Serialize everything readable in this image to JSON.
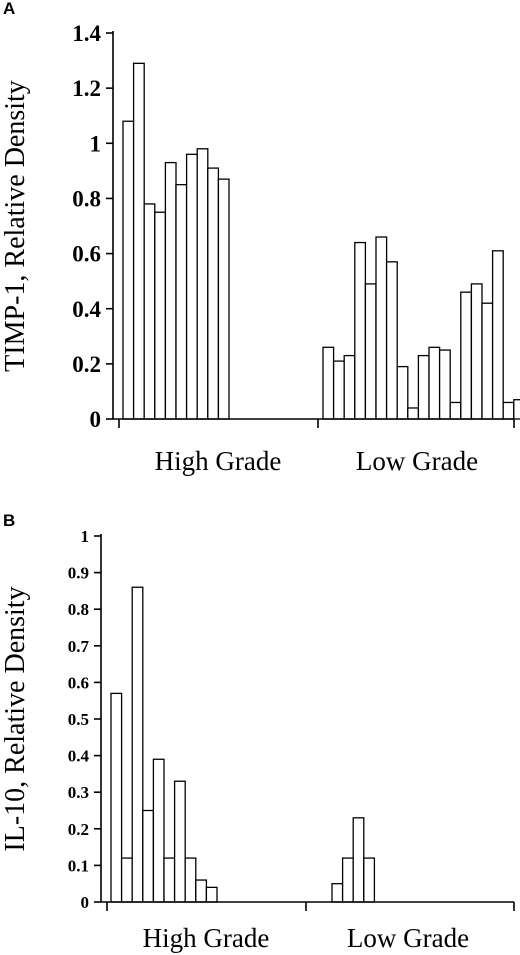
{
  "chart_data": [
    {
      "panel": "A",
      "type": "bar",
      "ylabel": "TIMP-1, Relative Density",
      "ylim": [
        0,
        1.4
      ],
      "yticks": [
        0,
        0.2,
        0.4,
        0.6,
        0.8,
        1,
        1.2,
        1.4
      ],
      "ytick_labels": [
        "0",
        "0.2",
        "0.4",
        "0.6",
        "0.8",
        "1",
        "1.2",
        "1.4"
      ],
      "grid": false,
      "groups": [
        {
          "label": "High Grade",
          "values": [
            1.08,
            1.29,
            0.78,
            0.75,
            0.93,
            0.85,
            0.96,
            0.98,
            0.91,
            0.87
          ]
        },
        {
          "label": "Low Grade",
          "values": [
            0.26,
            0.21,
            0.23,
            0.64,
            0.49,
            0.66,
            0.57,
            0.19,
            0.04,
            0.23,
            0.26,
            0.25,
            0.06,
            0.46,
            0.49,
            0.42,
            0.61,
            0.06,
            0.07
          ]
        }
      ]
    },
    {
      "panel": "B",
      "type": "bar",
      "ylabel": "IL-10, Relative Density",
      "ylim": [
        0,
        1
      ],
      "yticks": [
        0,
        0.1,
        0.2,
        0.3,
        0.4,
        0.5,
        0.6,
        0.7,
        0.8,
        0.9,
        1
      ],
      "ytick_labels": [
        "0",
        "0.1",
        "0.2",
        "0.3",
        "0.4",
        "0.5",
        "0.6",
        "0.7",
        "0.8",
        "0.9",
        "1"
      ],
      "grid": false,
      "groups": [
        {
          "label": "High Grade",
          "values": [
            0.57,
            0.12,
            0.86,
            0.25,
            0.39,
            0.12,
            0.33,
            0.12,
            0.06,
            0.04
          ]
        },
        {
          "label": "Low Grade",
          "values": [
            0.05,
            0.12,
            0.23,
            0.12
          ]
        }
      ]
    }
  ]
}
